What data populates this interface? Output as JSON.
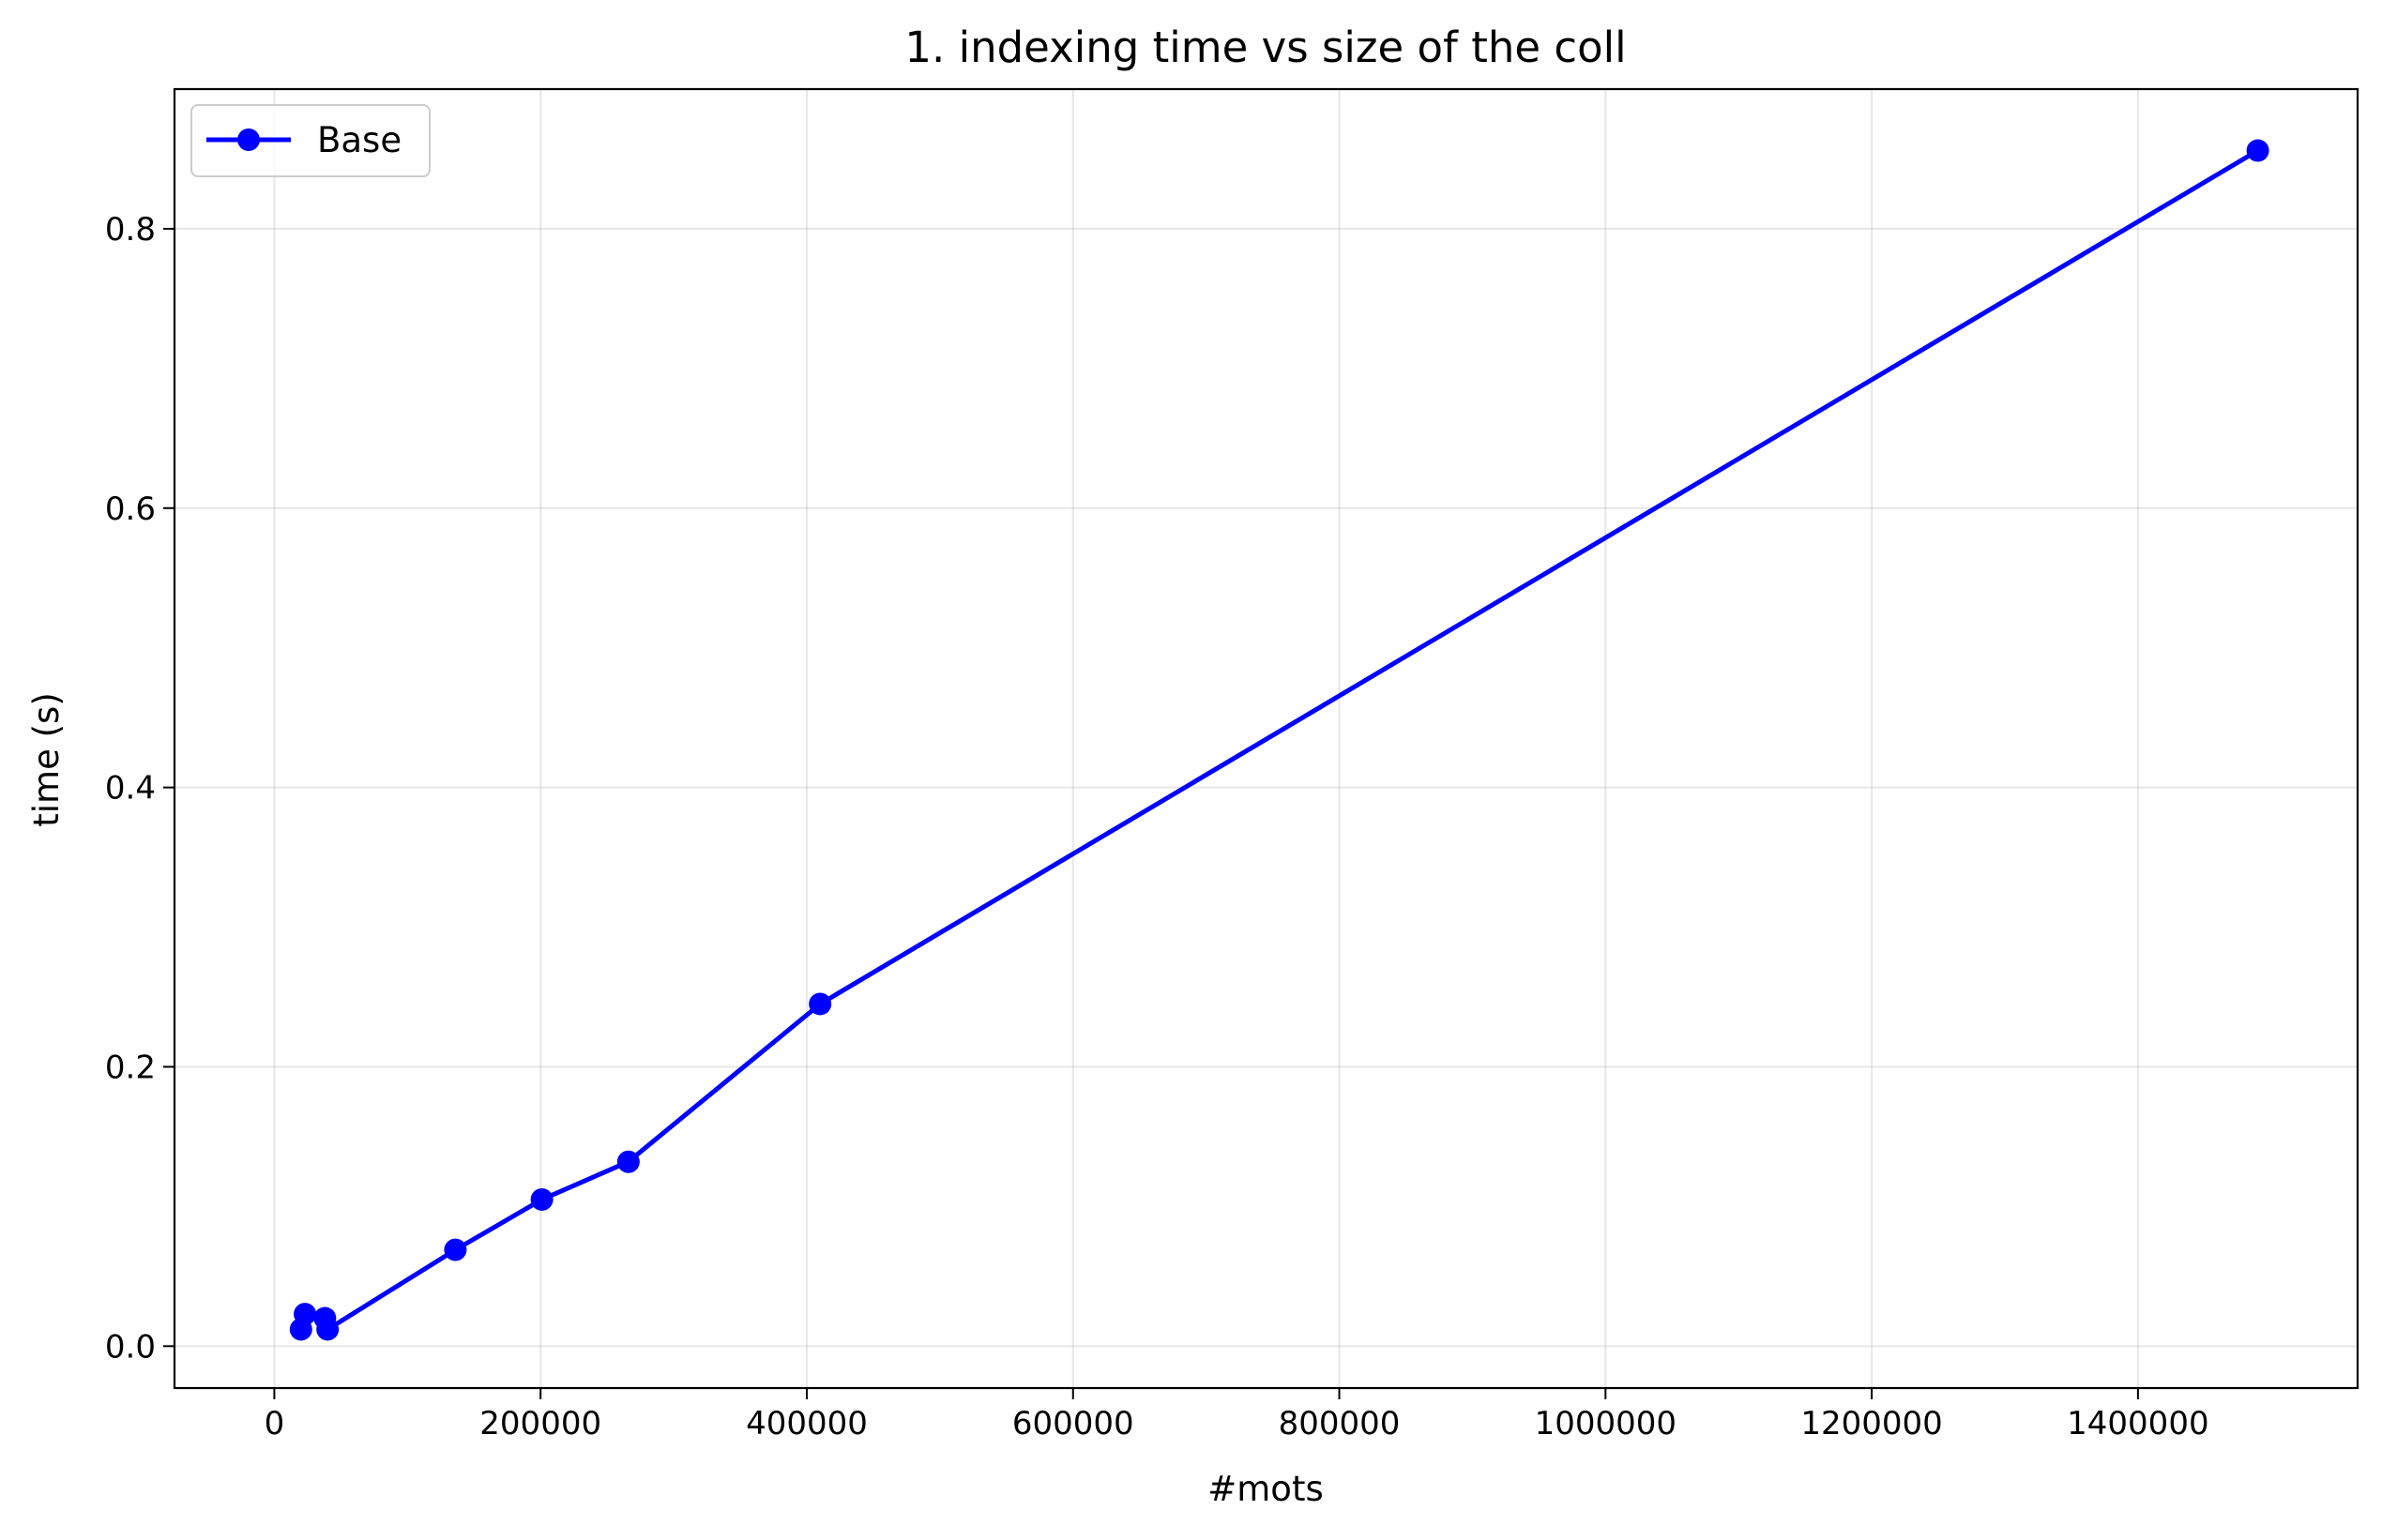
{
  "chart_data": {
    "type": "line",
    "title": "1. indexing time vs size of the coll",
    "xlabel": "#mots",
    "ylabel": "time (s)",
    "xlim": [
      -75000,
      1565000
    ],
    "ylim": [
      -0.03,
      0.9
    ],
    "xticks": [
      0,
      200000,
      400000,
      600000,
      800000,
      1000000,
      1200000,
      1400000
    ],
    "xtick_labels": [
      "0",
      "200000",
      "400000",
      "600000",
      "800000",
      "1000000",
      "1200000",
      "1400000"
    ],
    "yticks": [
      0.0,
      0.2,
      0.4,
      0.6,
      0.8
    ],
    "ytick_labels": [
      "0.0",
      "0.2",
      "0.4",
      "0.6",
      "0.8"
    ],
    "grid": true,
    "legend_position": "upper-left",
    "series": [
      {
        "name": "Base",
        "color": "#0000ff",
        "marker": "circle",
        "x": [
          20000,
          23000,
          38000,
          40000,
          136000,
          201000,
          266000,
          410000,
          1490000
        ],
        "y": [
          0.012,
          0.023,
          0.02,
          0.012,
          0.069,
          0.105,
          0.132,
          0.245,
          0.856
        ]
      }
    ]
  }
}
